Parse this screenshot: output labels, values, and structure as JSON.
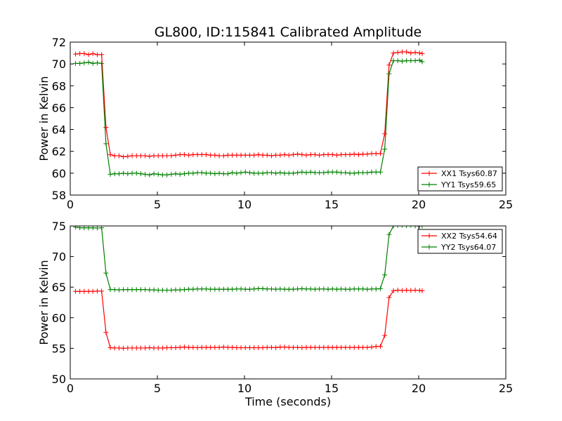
{
  "chart_data": [
    {
      "type": "line",
      "title": "GL800, ID:115841 Calibrated Amplitude",
      "xlabel": "",
      "ylabel": "Power in Kelvin",
      "xlim": [
        0,
        25
      ],
      "ylim": [
        58,
        72
      ],
      "xticks": [
        0,
        5,
        10,
        15,
        20,
        25
      ],
      "yticks": [
        58,
        60,
        62,
        64,
        66,
        68,
        70,
        72
      ],
      "grid": false,
      "legend_position": "lower-right",
      "series": [
        {
          "name": "XX1 Tsys60.87",
          "color": "#ff0000",
          "x": [
            0.3,
            0.55,
            0.8,
            1.05,
            1.3,
            1.55,
            1.8,
            2.05,
            2.3,
            2.55,
            2.8,
            3.05,
            3.3,
            3.55,
            3.8,
            4.05,
            4.3,
            4.55,
            4.8,
            5.05,
            5.3,
            5.55,
            5.8,
            6.05,
            6.3,
            6.55,
            6.8,
            7.05,
            7.3,
            7.55,
            7.8,
            8.05,
            8.3,
            8.55,
            8.8,
            9.05,
            9.3,
            9.55,
            9.8,
            10.05,
            10.3,
            10.55,
            10.8,
            11.05,
            11.3,
            11.55,
            11.8,
            12.05,
            12.3,
            12.55,
            12.8,
            13.05,
            13.3,
            13.55,
            13.8,
            14.05,
            14.3,
            14.55,
            14.8,
            15.05,
            15.3,
            15.55,
            15.8,
            16.05,
            16.3,
            16.55,
            16.8,
            17.05,
            17.3,
            17.55,
            17.8,
            18.05,
            18.3,
            18.55,
            18.8,
            19.05,
            19.3,
            19.55,
            19.8,
            20.05,
            20.2
          ],
          "y": [
            70.9,
            70.95,
            70.95,
            70.85,
            70.95,
            70.85,
            70.85,
            64.2,
            61.7,
            61.6,
            61.6,
            61.5,
            61.55,
            61.6,
            61.6,
            61.6,
            61.6,
            61.55,
            61.6,
            61.6,
            61.6,
            61.6,
            61.6,
            61.65,
            61.7,
            61.7,
            61.65,
            61.7,
            61.7,
            61.7,
            61.7,
            61.65,
            61.65,
            61.6,
            61.6,
            61.65,
            61.65,
            61.65,
            61.65,
            61.65,
            61.65,
            61.65,
            61.7,
            61.65,
            61.65,
            61.6,
            61.65,
            61.65,
            61.7,
            61.65,
            61.7,
            61.75,
            61.7,
            61.65,
            61.7,
            61.7,
            61.65,
            61.7,
            61.7,
            61.7,
            61.65,
            61.7,
            61.7,
            61.7,
            61.75,
            61.7,
            61.75,
            61.75,
            61.8,
            61.8,
            61.8,
            63.6,
            69.9,
            71.0,
            71.05,
            71.1,
            71.1,
            71.0,
            71.05,
            71.0,
            70.95
          ]
        },
        {
          "name": "YY1 Tsys59.65",
          "color": "#008000",
          "x": [
            0.3,
            0.55,
            0.8,
            1.05,
            1.3,
            1.55,
            1.8,
            2.05,
            2.3,
            2.55,
            2.8,
            3.05,
            3.3,
            3.55,
            3.8,
            4.05,
            4.3,
            4.55,
            4.8,
            5.05,
            5.3,
            5.55,
            5.8,
            6.05,
            6.3,
            6.55,
            6.8,
            7.05,
            7.3,
            7.55,
            7.8,
            8.05,
            8.3,
            8.55,
            8.8,
            9.05,
            9.3,
            9.55,
            9.8,
            10.05,
            10.3,
            10.55,
            10.8,
            11.05,
            11.3,
            11.55,
            11.8,
            12.05,
            12.3,
            12.55,
            12.8,
            13.05,
            13.3,
            13.55,
            13.8,
            14.05,
            14.3,
            14.55,
            14.8,
            15.05,
            15.3,
            15.55,
            15.8,
            16.05,
            16.3,
            16.55,
            16.8,
            17.05,
            17.3,
            17.55,
            17.8,
            18.05,
            18.3,
            18.55,
            18.8,
            19.05,
            19.3,
            19.55,
            19.8,
            20.05,
            20.2
          ],
          "y": [
            70.05,
            70.05,
            70.1,
            70.15,
            70.05,
            70.1,
            70.05,
            62.7,
            59.9,
            59.95,
            59.95,
            60.0,
            59.95,
            60.0,
            60.0,
            59.95,
            59.9,
            59.85,
            59.95,
            59.9,
            59.85,
            59.85,
            59.9,
            59.95,
            59.9,
            59.95,
            60.0,
            60.0,
            60.05,
            60.05,
            60.0,
            60.0,
            59.95,
            60.0,
            59.95,
            59.95,
            60.05,
            60.0,
            60.05,
            60.1,
            60.05,
            60.0,
            60.0,
            60.0,
            60.05,
            60.05,
            60.0,
            60.05,
            60.0,
            60.0,
            60.0,
            60.05,
            60.1,
            60.05,
            60.1,
            60.05,
            60.05,
            60.05,
            60.1,
            60.1,
            60.1,
            60.05,
            60.05,
            60.0,
            60.0,
            60.05,
            60.05,
            60.05,
            60.1,
            60.1,
            60.1,
            62.2,
            69.1,
            70.3,
            70.3,
            70.25,
            70.3,
            70.3,
            70.3,
            70.35,
            70.2
          ]
        }
      ]
    },
    {
      "type": "line",
      "title": "",
      "xlabel": "Time (seconds)",
      "ylabel": "Power in Kelvin",
      "xlim": [
        0,
        25
      ],
      "ylim": [
        50,
        75
      ],
      "xticks": [
        0,
        5,
        10,
        15,
        20,
        25
      ],
      "yticks": [
        50,
        55,
        60,
        65,
        70,
        75
      ],
      "grid": false,
      "legend_position": "upper-right",
      "series": [
        {
          "name": "XX2 Tsys54.64",
          "color": "#ff0000",
          "x": [
            0.3,
            0.55,
            0.8,
            1.05,
            1.3,
            1.55,
            1.8,
            2.05,
            2.3,
            2.55,
            2.8,
            3.05,
            3.3,
            3.55,
            3.8,
            4.05,
            4.3,
            4.55,
            4.8,
            5.05,
            5.3,
            5.55,
            5.8,
            6.05,
            6.3,
            6.55,
            6.8,
            7.05,
            7.3,
            7.55,
            7.8,
            8.05,
            8.3,
            8.55,
            8.8,
            9.05,
            9.3,
            9.55,
            9.8,
            10.05,
            10.3,
            10.55,
            10.8,
            11.05,
            11.3,
            11.55,
            11.8,
            12.05,
            12.3,
            12.55,
            12.8,
            13.05,
            13.3,
            13.55,
            13.8,
            14.05,
            14.3,
            14.55,
            14.8,
            15.05,
            15.3,
            15.55,
            15.8,
            16.05,
            16.3,
            16.55,
            16.8,
            17.05,
            17.3,
            17.55,
            17.8,
            18.05,
            18.3,
            18.55,
            18.8,
            19.05,
            19.3,
            19.55,
            19.8,
            20.05,
            20.2
          ],
          "y": [
            64.3,
            64.3,
            64.3,
            64.3,
            64.3,
            64.35,
            64.35,
            57.6,
            55.1,
            55.05,
            55.05,
            55.0,
            55.05,
            55.05,
            55.05,
            55.05,
            55.05,
            55.1,
            55.05,
            55.05,
            55.05,
            55.1,
            55.1,
            55.1,
            55.15,
            55.2,
            55.15,
            55.15,
            55.1,
            55.15,
            55.15,
            55.15,
            55.15,
            55.15,
            55.2,
            55.15,
            55.15,
            55.1,
            55.1,
            55.1,
            55.1,
            55.1,
            55.1,
            55.1,
            55.15,
            55.15,
            55.1,
            55.2,
            55.2,
            55.15,
            55.15,
            55.15,
            55.1,
            55.15,
            55.15,
            55.15,
            55.15,
            55.15,
            55.15,
            55.15,
            55.15,
            55.15,
            55.15,
            55.15,
            55.15,
            55.15,
            55.15,
            55.15,
            55.2,
            55.3,
            55.3,
            57.1,
            63.3,
            64.4,
            64.5,
            64.45,
            64.5,
            64.45,
            64.5,
            64.45,
            64.4
          ]
        },
        {
          "name": "YY2 Tsys64.07",
          "color": "#008000",
          "x": [
            0.3,
            0.55,
            0.8,
            1.05,
            1.3,
            1.55,
            1.8,
            2.05,
            2.3,
            2.55,
            2.8,
            3.05,
            3.3,
            3.55,
            3.8,
            4.05,
            4.3,
            4.55,
            4.8,
            5.05,
            5.3,
            5.55,
            5.8,
            6.05,
            6.3,
            6.55,
            6.8,
            7.05,
            7.3,
            7.55,
            7.8,
            8.05,
            8.3,
            8.55,
            8.8,
            9.05,
            9.3,
            9.55,
            9.8,
            10.05,
            10.3,
            10.55,
            10.8,
            11.05,
            11.3,
            11.55,
            11.8,
            12.05,
            12.3,
            12.55,
            12.8,
            13.05,
            13.3,
            13.55,
            13.8,
            14.05,
            14.3,
            14.55,
            14.8,
            15.05,
            15.3,
            15.55,
            15.8,
            16.05,
            16.3,
            16.55,
            16.8,
            17.05,
            17.3,
            17.55,
            17.8,
            18.05,
            18.3,
            18.55,
            18.8,
            19.05,
            19.3,
            19.55,
            19.8,
            20.05,
            20.2
          ],
          "y": [
            74.8,
            74.7,
            74.7,
            74.7,
            74.7,
            74.65,
            74.7,
            67.3,
            64.6,
            64.6,
            64.55,
            64.6,
            64.6,
            64.6,
            64.6,
            64.6,
            64.6,
            64.55,
            64.55,
            64.5,
            64.5,
            64.5,
            64.5,
            64.55,
            64.55,
            64.6,
            64.65,
            64.65,
            64.7,
            64.7,
            64.7,
            64.65,
            64.65,
            64.65,
            64.65,
            64.65,
            64.65,
            64.7,
            64.7,
            64.65,
            64.65,
            64.7,
            64.75,
            64.75,
            64.7,
            64.7,
            64.65,
            64.7,
            64.65,
            64.65,
            64.65,
            64.7,
            64.75,
            64.7,
            64.7,
            64.65,
            64.7,
            64.7,
            64.65,
            64.7,
            64.65,
            64.7,
            64.65,
            64.65,
            64.7,
            64.7,
            64.7,
            64.65,
            64.7,
            64.7,
            64.75,
            67.0,
            73.6,
            75.0,
            75.1,
            75.1,
            75.05,
            75.1,
            75.0,
            75.0,
            75.0
          ]
        }
      ]
    }
  ]
}
